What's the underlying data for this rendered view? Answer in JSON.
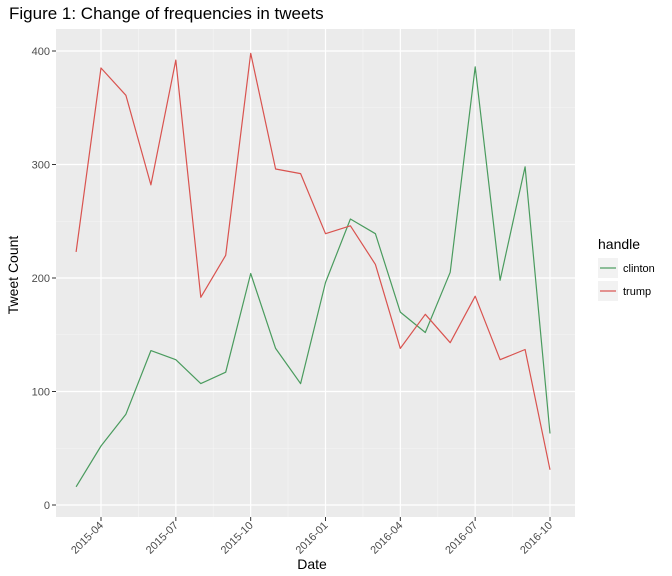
{
  "chart_data": {
    "type": "line",
    "title": "Figure 1: Change of frequencies in tweets",
    "xlabel": "Date",
    "ylabel": "Tweet Count",
    "x": [
      "2015-03",
      "2015-04",
      "2015-05",
      "2015-06",
      "2015-07",
      "2015-08",
      "2015-09",
      "2015-10",
      "2015-11",
      "2015-12",
      "2016-01",
      "2016-02",
      "2016-03",
      "2016-04",
      "2016-05",
      "2016-06",
      "2016-07",
      "2016-08",
      "2016-09",
      "2016-10"
    ],
    "x_ticks": [
      "2015-04",
      "2015-07",
      "2015-10",
      "2016-01",
      "2016-04",
      "2016-07",
      "2016-10"
    ],
    "y_ticks": [
      0,
      100,
      200,
      300,
      400
    ],
    "ylim": [
      0,
      420
    ],
    "grid": true,
    "legend": {
      "title": "handle",
      "position": "right"
    },
    "series": [
      {
        "name": "clinton",
        "color": "#4a9b5e",
        "values": [
          16,
          52,
          80,
          136,
          128,
          107,
          117,
          204,
          138,
          107,
          196,
          252,
          239,
          170,
          152,
          205,
          386,
          198,
          298,
          63
        ]
      },
      {
        "name": "trump",
        "color": "#d9534f",
        "values": [
          223,
          385,
          361,
          282,
          392,
          183,
          220,
          398,
          296,
          292,
          239,
          246,
          212,
          138,
          168,
          143,
          184,
          128,
          137,
          31
        ]
      }
    ]
  }
}
